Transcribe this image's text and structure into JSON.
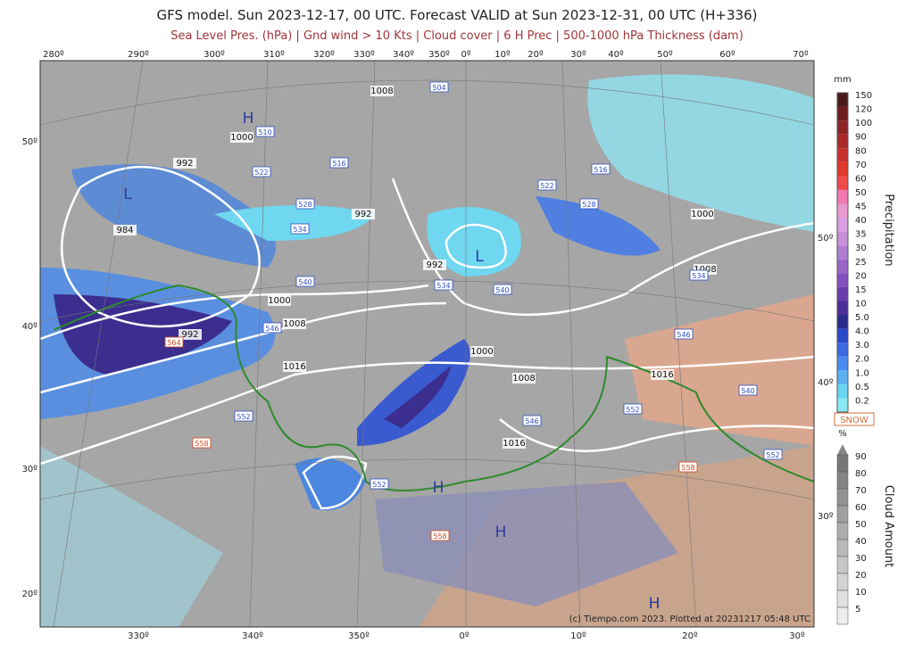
{
  "header": {
    "title": "GFS model. Sun 2023-12-17, 00 UTC. Forecast VALID at Sun 2023-12-31, 00 UTC (H+336)",
    "subtitle": "Sea Level Pres. (hPa) | Gnd wind > 10 Kts | Cloud cover | 6 H Prec | 500-1000 hPa Thickness (dam)"
  },
  "map": {
    "top_lon_labels": [
      "280º",
      "290º",
      "300º",
      "310º",
      "320º",
      "330º",
      "340º",
      "350º",
      "0º",
      "10º",
      "20º",
      "30º",
      "40º",
      "50º",
      "60º",
      "70º"
    ],
    "bottom_lon_labels": [
      "330º",
      "340º",
      "350º",
      "0º",
      "10º",
      "20º",
      "30º"
    ],
    "left_lat_labels": [
      "50º",
      "40º",
      "30º",
      "20º"
    ],
    "right_lat_labels": [
      "50º",
      "40º",
      "30º"
    ],
    "pressure_labels": [
      "1008",
      "992",
      "992",
      "984",
      "992",
      "1000",
      "1008",
      "1000",
      "1008",
      "992",
      "1016",
      "1000",
      "1008",
      "1016",
      "1016",
      "1000"
    ],
    "centers": [
      "H",
      "L",
      "L",
      "H",
      "H",
      "H"
    ],
    "thickness_labels": [
      "504",
      "510",
      "516",
      "522",
      "528",
      "534",
      "540",
      "546",
      "534",
      "540",
      "516",
      "522",
      "528",
      "534",
      "546",
      "540",
      "552",
      "552",
      "552",
      "552",
      "546",
      "564",
      "558",
      "558",
      "558"
    ],
    "credit": "(c) Tiempo.com 2023. Plotted at 20231217 05:48 UTC"
  },
  "precip_legend": {
    "unit": "mm",
    "title": "Precipitation",
    "levels": [
      "150",
      "120",
      "100",
      "90",
      "80",
      "70",
      "60",
      "50",
      "45",
      "40",
      "35",
      "30",
      "25",
      "20",
      "15",
      "10",
      "5.0",
      "4.0",
      "3.0",
      "2.0",
      "1.0",
      "0.5",
      "0.2"
    ]
  },
  "snow_label": "SNOW",
  "cloud_legend": {
    "unit": "%",
    "title": "Cloud Amount",
    "levels": [
      "90",
      "80",
      "70",
      "60",
      "50",
      "40",
      "30",
      "20",
      "10",
      "5"
    ]
  }
}
